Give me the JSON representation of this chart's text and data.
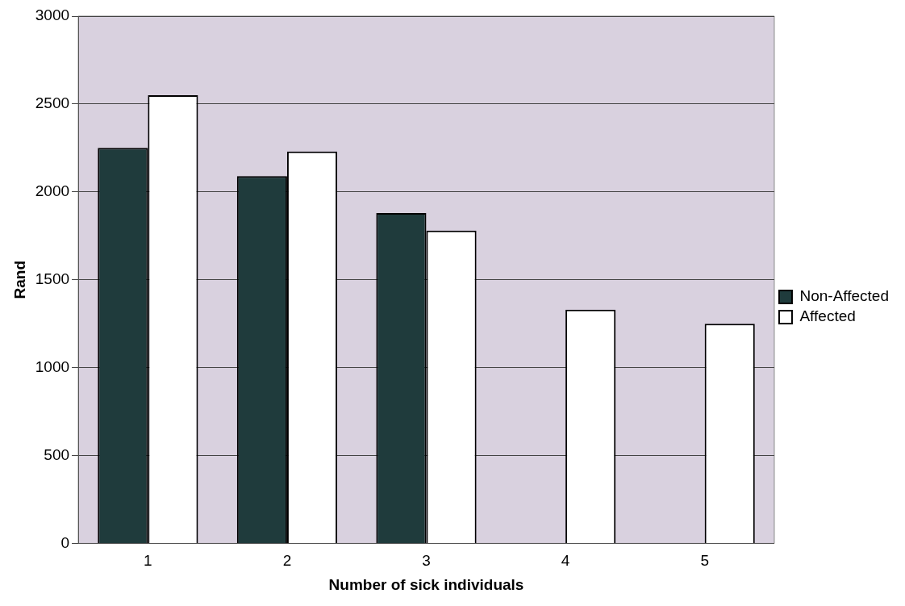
{
  "chart_data": {
    "type": "bar",
    "xlabel": "Number of sick individuals",
    "ylabel": "Rand",
    "categories": [
      "1",
      "2",
      "3",
      "4",
      "5"
    ],
    "series": [
      {
        "name": "Non-Affected",
        "color": "#1f3b3c",
        "values": [
          2250,
          2090,
          1880,
          0,
          0
        ]
      },
      {
        "name": "Affected",
        "color": "#ffffff",
        "values": [
          2550,
          2230,
          1780,
          1330,
          1250
        ]
      }
    ],
    "ylim": [
      0,
      3000
    ],
    "yticks": [
      0,
      500,
      1000,
      1500,
      2000,
      2500,
      3000
    ],
    "grid": "y",
    "legend": "right"
  }
}
